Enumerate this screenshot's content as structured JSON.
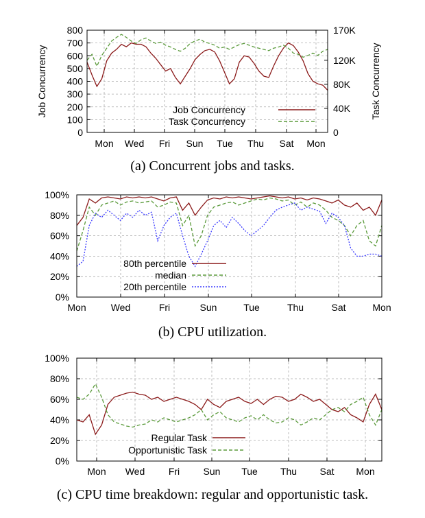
{
  "chart_data": [
    {
      "type": "line",
      "caption": "(a) Concurrent jobs and tasks.",
      "x_ticks": [
        "Mon",
        "Wed",
        "Fri",
        "Sun",
        "Tue",
        "Thu",
        "Sat",
        "Mon"
      ],
      "ylabel": "Job Concurrency",
      "ylim": [
        0,
        800
      ],
      "y_ticks": [
        "0",
        "100",
        "200",
        "300",
        "400",
        "500",
        "600",
        "700",
        "800"
      ],
      "y2label": "Task Concurrency",
      "y2lim": [
        0,
        170000
      ],
      "y2_ticks": [
        "0",
        "40K",
        "80K",
        "120K",
        "170K"
      ],
      "y2_tick_values": [
        0,
        40000,
        80000,
        120000,
        170000
      ],
      "grid": true,
      "legend_position": "bottom-right",
      "series": [
        {
          "name": "Job Concurrency",
          "axis": "left",
          "color": "#8b1a1a",
          "dash": "solid",
          "values": [
            550,
            450,
            360,
            420,
            560,
            620,
            650,
            690,
            670,
            700,
            690,
            690,
            670,
            620,
            580,
            530,
            480,
            500,
            430,
            380,
            440,
            500,
            570,
            610,
            640,
            650,
            630,
            560,
            470,
            380,
            420,
            550,
            600,
            590,
            540,
            480,
            440,
            430,
            520,
            600,
            660,
            700,
            680,
            630,
            560,
            460,
            400,
            380,
            370,
            330
          ]
        },
        {
          "name": "Task Concurrency",
          "axis": "right",
          "color": "#5a9a3a",
          "dash": "dashed",
          "values": [
            120000,
            130000,
            110000,
            128000,
            140000,
            152000,
            158000,
            163000,
            158000,
            152000,
            148000,
            154000,
            157000,
            152000,
            148000,
            150000,
            145000,
            142000,
            138000,
            135000,
            140000,
            148000,
            152000,
            155000,
            150000,
            148000,
            145000,
            140000,
            142000,
            138000,
            142000,
            146000,
            148000,
            145000,
            142000,
            140000,
            138000,
            136000,
            140000,
            142000,
            145000,
            140000,
            132000,
            130000,
            125000,
            128000,
            132000,
            128000,
            135000,
            138000
          ]
        }
      ]
    },
    {
      "type": "line",
      "caption": "(b) CPU utilization.",
      "x_ticks": [
        "Mon",
        "Wed",
        "Fri",
        "Sun",
        "Tue",
        "Thu",
        "Sat",
        "Mon"
      ],
      "ylim": [
        0,
        100
      ],
      "y_ticks": [
        "0%",
        "20%",
        "40%",
        "60%",
        "80%",
        "100%"
      ],
      "grid": true,
      "legend_position": "bottom-left",
      "series": [
        {
          "name": "80th percentile",
          "color": "#8b1a1a",
          "dash": "solid",
          "values": [
            70,
            78,
            96,
            92,
            97,
            98,
            97,
            96,
            98,
            97,
            98,
            97,
            98,
            96,
            94,
            97,
            98,
            85,
            92,
            80,
            88,
            95,
            97,
            96,
            98,
            97,
            98,
            97,
            96,
            97,
            98,
            99,
            98,
            97,
            98,
            96,
            97,
            95,
            97,
            96,
            94,
            92,
            95,
            90,
            88,
            92,
            85,
            88,
            80,
            95
          ]
        },
        {
          "name": "median",
          "color": "#5a9a3a",
          "dash": "dashed",
          "values": [
            45,
            65,
            88,
            80,
            90,
            92,
            94,
            90,
            93,
            94,
            92,
            93,
            94,
            88,
            90,
            93,
            92,
            70,
            80,
            50,
            60,
            80,
            88,
            90,
            92,
            93,
            90,
            92,
            94,
            96,
            95,
            97,
            96,
            94,
            95,
            90,
            93,
            88,
            92,
            90,
            85,
            78,
            75,
            70,
            60,
            70,
            75,
            55,
            50,
            70
          ]
        },
        {
          "name": "20th percentile",
          "color": "#3a3aff",
          "dash": "dotted",
          "values": [
            30,
            35,
            70,
            82,
            78,
            85,
            80,
            75,
            82,
            78,
            85,
            80,
            83,
            55,
            70,
            78,
            82,
            60,
            40,
            30,
            42,
            55,
            70,
            75,
            68,
            78,
            72,
            65,
            60,
            65,
            70,
            78,
            85,
            88,
            90,
            92,
            85,
            88,
            86,
            84,
            72,
            82,
            78,
            70,
            48,
            40,
            40,
            42,
            42,
            40
          ]
        }
      ]
    },
    {
      "type": "line",
      "caption": "(c) CPU time breakdown: regular and opportunistic task.",
      "x_ticks": [
        "Mon",
        "Wed",
        "Fri",
        "Sun",
        "Tue",
        "Thu",
        "Sat",
        "Mon"
      ],
      "ylim": [
        0,
        100
      ],
      "y_ticks": [
        "0%",
        "20%",
        "40%",
        "60%",
        "80%",
        "100%"
      ],
      "grid": true,
      "legend_position": "bottom-left",
      "series": [
        {
          "name": "Regular Task",
          "color": "#8b1a1a",
          "dash": "solid",
          "values": [
            40,
            38,
            45,
            26,
            35,
            55,
            62,
            64,
            66,
            67,
            65,
            64,
            60,
            62,
            58,
            60,
            62,
            60,
            58,
            55,
            50,
            60,
            55,
            52,
            58,
            60,
            62,
            58,
            56,
            60,
            55,
            60,
            63,
            62,
            58,
            60,
            65,
            62,
            58,
            60,
            55,
            50,
            48,
            52,
            45,
            42,
            38,
            55,
            65,
            50
          ]
        },
        {
          "name": "Opportunistic Task",
          "color": "#5a9a3a",
          "dash": "dashed",
          "values": [
            62,
            60,
            65,
            75,
            62,
            45,
            38,
            36,
            34,
            33,
            35,
            36,
            40,
            38,
            42,
            40,
            38,
            40,
            42,
            45,
            50,
            40,
            45,
            48,
            42,
            40,
            38,
            42,
            44,
            40,
            45,
            40,
            37,
            38,
            42,
            40,
            35,
            38,
            42,
            40,
            45,
            50,
            52,
            48,
            55,
            58,
            62,
            45,
            35,
            50
          ]
        }
      ]
    }
  ]
}
